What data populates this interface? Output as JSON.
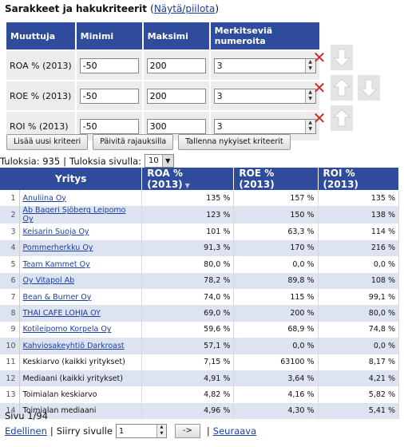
{
  "criteria": {
    "title": "Sarakkeet ja hakukriteerit",
    "toggle_open": "(",
    "toggle_label": "Näytä/piilota",
    "toggle_close": ")",
    "headers": [
      "Muuttuja",
      "Minimi",
      "Maksimi",
      "Merkitseviä numeroita"
    ],
    "rows": [
      {
        "label": "ROA % (2013)",
        "min": "-50",
        "max": "200",
        "digits": "3"
      },
      {
        "label": "ROE % (2013)",
        "min": "-50",
        "max": "200",
        "digits": "3"
      },
      {
        "label": "ROI % (2013)",
        "min": "-50",
        "max": "300",
        "digits": "3"
      }
    ],
    "buttons": {
      "add": "Lisää uusi kriteeri",
      "update": "Päivitä rajauksilla",
      "save": "Tallenna nykyiset kriteerit"
    }
  },
  "results": {
    "label_results": "Tuloksia: 935",
    "separator": "|",
    "label_per_page": "Tuloksia sivulla:",
    "per_page": "10"
  },
  "table": {
    "headers": [
      "Yritys",
      "ROA % (2013)",
      "ROE % (2013)",
      "ROI % (2013)"
    ],
    "sort_indicator": "▼",
    "rows": [
      {
        "n": "1",
        "name": "Anuliina Oy",
        "link": true,
        "roa": "135 %",
        "roe": "157 %",
        "roi": "135 %"
      },
      {
        "n": "2",
        "name": "Ab Bageri Sjöberg Leipomo Oy",
        "link": true,
        "roa": "123 %",
        "roe": "150 %",
        "roi": "138 %"
      },
      {
        "n": "3",
        "name": "Keisarin Suoja Oy",
        "link": true,
        "roa": "101 %",
        "roe": "63,3 %",
        "roi": "114 %"
      },
      {
        "n": "4",
        "name": "Pommerherkku Oy",
        "link": true,
        "roa": "91,3 %",
        "roe": "170 %",
        "roi": "216 %"
      },
      {
        "n": "5",
        "name": "Team Kammet Oy",
        "link": true,
        "roa": "80,0 %",
        "roe": "0,0 %",
        "roi": "0,0 %"
      },
      {
        "n": "6",
        "name": "Oy Vitapol Ab",
        "link": true,
        "roa": "78,2 %",
        "roe": "89,8 %",
        "roi": "108 %"
      },
      {
        "n": "7",
        "name": "Bean & Burner Oy",
        "link": true,
        "roa": "74,0 %",
        "roe": "115 %",
        "roi": "99,1 %"
      },
      {
        "n": "8",
        "name": "THAI CAFE LOHJA OY",
        "link": true,
        "roa": "69,0 %",
        "roe": "200 %",
        "roi": "80,0 %"
      },
      {
        "n": "9",
        "name": "Kotileipomo Korpela Oy",
        "link": true,
        "roa": "59,6 %",
        "roe": "68,9 %",
        "roi": "74,8 %"
      },
      {
        "n": "10",
        "name": "Kahviosakeyhtiö Darkroast",
        "link": true,
        "roa": "57,1 %",
        "roe": "0,0 %",
        "roi": "0,0 %"
      },
      {
        "n": "11",
        "name": "Keskiarvo (kaikki yritykset)",
        "link": false,
        "roa": "7,15 %",
        "roe": "63100 %",
        "roi": "8,17 %"
      },
      {
        "n": "12",
        "name": "Mediaani (kaikki yritykset)",
        "link": false,
        "roa": "4,91 %",
        "roe": "3,64 %",
        "roi": "4,21 %"
      },
      {
        "n": "13",
        "name": "Toimialan keskiarvo",
        "link": false,
        "roa": "4,82 %",
        "roe": "4,16 %",
        "roi": "5,82 %"
      },
      {
        "n": "14",
        "name": "Toimialan mediaani",
        "link": false,
        "roa": "4,96 %",
        "roe": "4,30 %",
        "roi": "5,41 %"
      }
    ]
  },
  "pager": {
    "page_info": "Sivu 1/94",
    "prev": "Edellinen",
    "goto_label": "Siirry sivulle",
    "goto_value": "1",
    "go_button": "->",
    "next": "Seuraava",
    "separator": "|"
  },
  "colors": {
    "header_bg": "#2f4c9c",
    "row_alt": "#dde3f0",
    "link": "#1a3fa0",
    "delete": "#d0272b"
  },
  "icons": {
    "delete": "close-x-icon",
    "up": "arrow-up-icon",
    "down": "arrow-down-icon"
  }
}
